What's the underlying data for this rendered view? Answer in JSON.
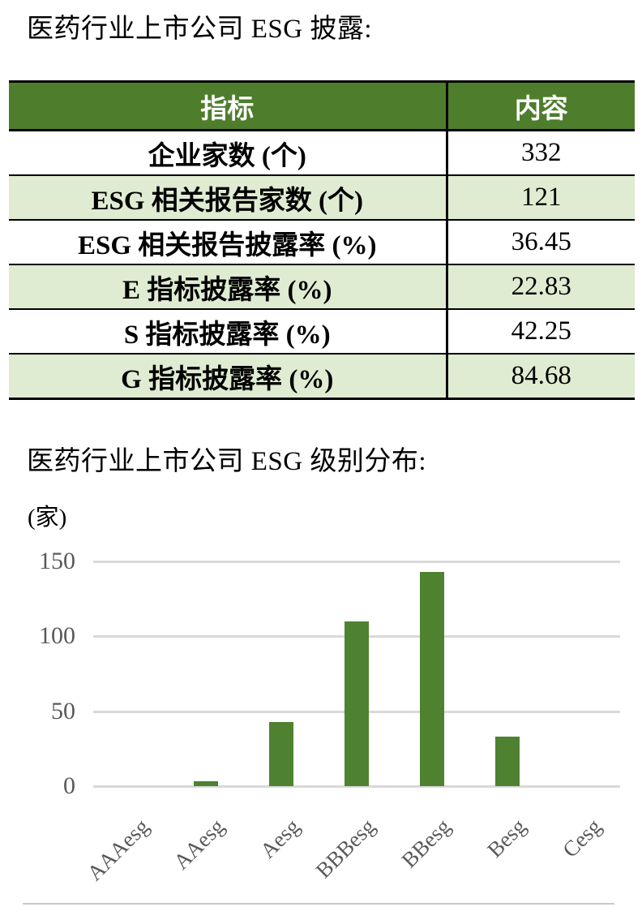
{
  "page": {
    "title1": "医药行业上市公司 ESG 披露:",
    "title2": "医药行业上市公司 ESG 级别分布:"
  },
  "table": {
    "headers": [
      "指标",
      "内容"
    ],
    "rows": [
      {
        "label": "企业家数 (个)",
        "value": "332"
      },
      {
        "label": "ESG 相关报告家数 (个)",
        "value": "121"
      },
      {
        "label": "ESG 相关报告披露率 (%)",
        "value": "36.45"
      },
      {
        "label": "E 指标披露率 (%)",
        "value": "22.83"
      },
      {
        "label": "S 指标披露率 (%)",
        "value": "42.25"
      },
      {
        "label": "G 指标披露率 (%)",
        "value": "84.68"
      }
    ],
    "colors": {
      "header_bg": "#4e7d2c",
      "header_text": "#ffffff",
      "alt_row_bg": "#dfecd2",
      "border": "#000000"
    }
  },
  "chart_data": {
    "type": "bar",
    "title": "医药行业上市公司 ESG 级别分布",
    "ylabel": "(家)",
    "xlabel": "",
    "categories": [
      "AAAesg",
      "AAesg",
      "Aesg",
      "BBBesg",
      "BBesg",
      "Besg",
      "Cesg"
    ],
    "values": [
      0,
      3,
      43,
      110,
      143,
      33,
      0
    ],
    "yticks": [
      150,
      100,
      50,
      0
    ],
    "ylim": [
      0,
      150
    ],
    "grid": true,
    "legend": "none",
    "bar_color": "#4e8230",
    "axis_label_color": "#595959",
    "gridline_color": "#d9d9d9"
  }
}
